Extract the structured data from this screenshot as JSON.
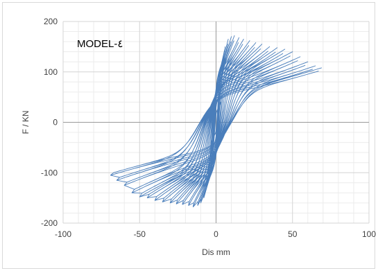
{
  "chart_data": {
    "type": "line",
    "title": "",
    "annotation": "MODEL-٤",
    "xlabel": "Dis mm",
    "ylabel": "F / KN",
    "xlim": [
      -100,
      100
    ],
    "ylim": [
      -200,
      200
    ],
    "x_ticks": [
      -100,
      -50,
      0,
      50,
      100
    ],
    "y_ticks": [
      200,
      100,
      0,
      -100,
      -200
    ],
    "grid": true,
    "legend": "none",
    "line_color": "#4a7ebb",
    "series": [
      {
        "cycles": [
          {
            "amp": 3,
            "peak_pos": 40,
            "peak_neg": -40
          },
          {
            "amp": 4,
            "peak_pos": 75,
            "peak_neg": -70
          },
          {
            "amp": 5,
            "peak_pos": 110,
            "peak_neg": -95
          },
          {
            "amp": 6,
            "peak_pos": 150,
            "peak_neg": -125
          },
          {
            "amp": 8,
            "peak_pos": 165,
            "peak_neg": -150
          },
          {
            "amp": 10,
            "peak_pos": 170,
            "peak_neg": -160
          },
          {
            "amp": 12,
            "peak_pos": 172,
            "peak_neg": -165
          },
          {
            "amp": 15,
            "peak_pos": 168,
            "peak_neg": -168
          },
          {
            "amp": 18,
            "peak_pos": 165,
            "peak_neg": -165
          },
          {
            "amp": 22,
            "peak_pos": 162,
            "peak_neg": -163
          },
          {
            "amp": 26,
            "peak_pos": 158,
            "peak_neg": -162
          },
          {
            "amp": 30,
            "peak_pos": 155,
            "peak_neg": -160
          },
          {
            "amp": 35,
            "peak_pos": 150,
            "peak_neg": -158
          },
          {
            "amp": 40,
            "peak_pos": 148,
            "peak_neg": -155
          },
          {
            "amp": 45,
            "peak_pos": 145,
            "peak_neg": -150
          },
          {
            "amp": 50,
            "peak_pos": 140,
            "peak_neg": -148
          },
          {
            "amp": 55,
            "peak_pos": 130,
            "peak_neg": -140
          },
          {
            "amp": 60,
            "peak_pos": 120,
            "peak_neg": -125
          },
          {
            "amp": 65,
            "peak_pos": 112,
            "peak_neg": -115
          },
          {
            "amp": 69,
            "peak_pos": 108,
            "peak_neg": -105
          }
        ]
      }
    ]
  }
}
